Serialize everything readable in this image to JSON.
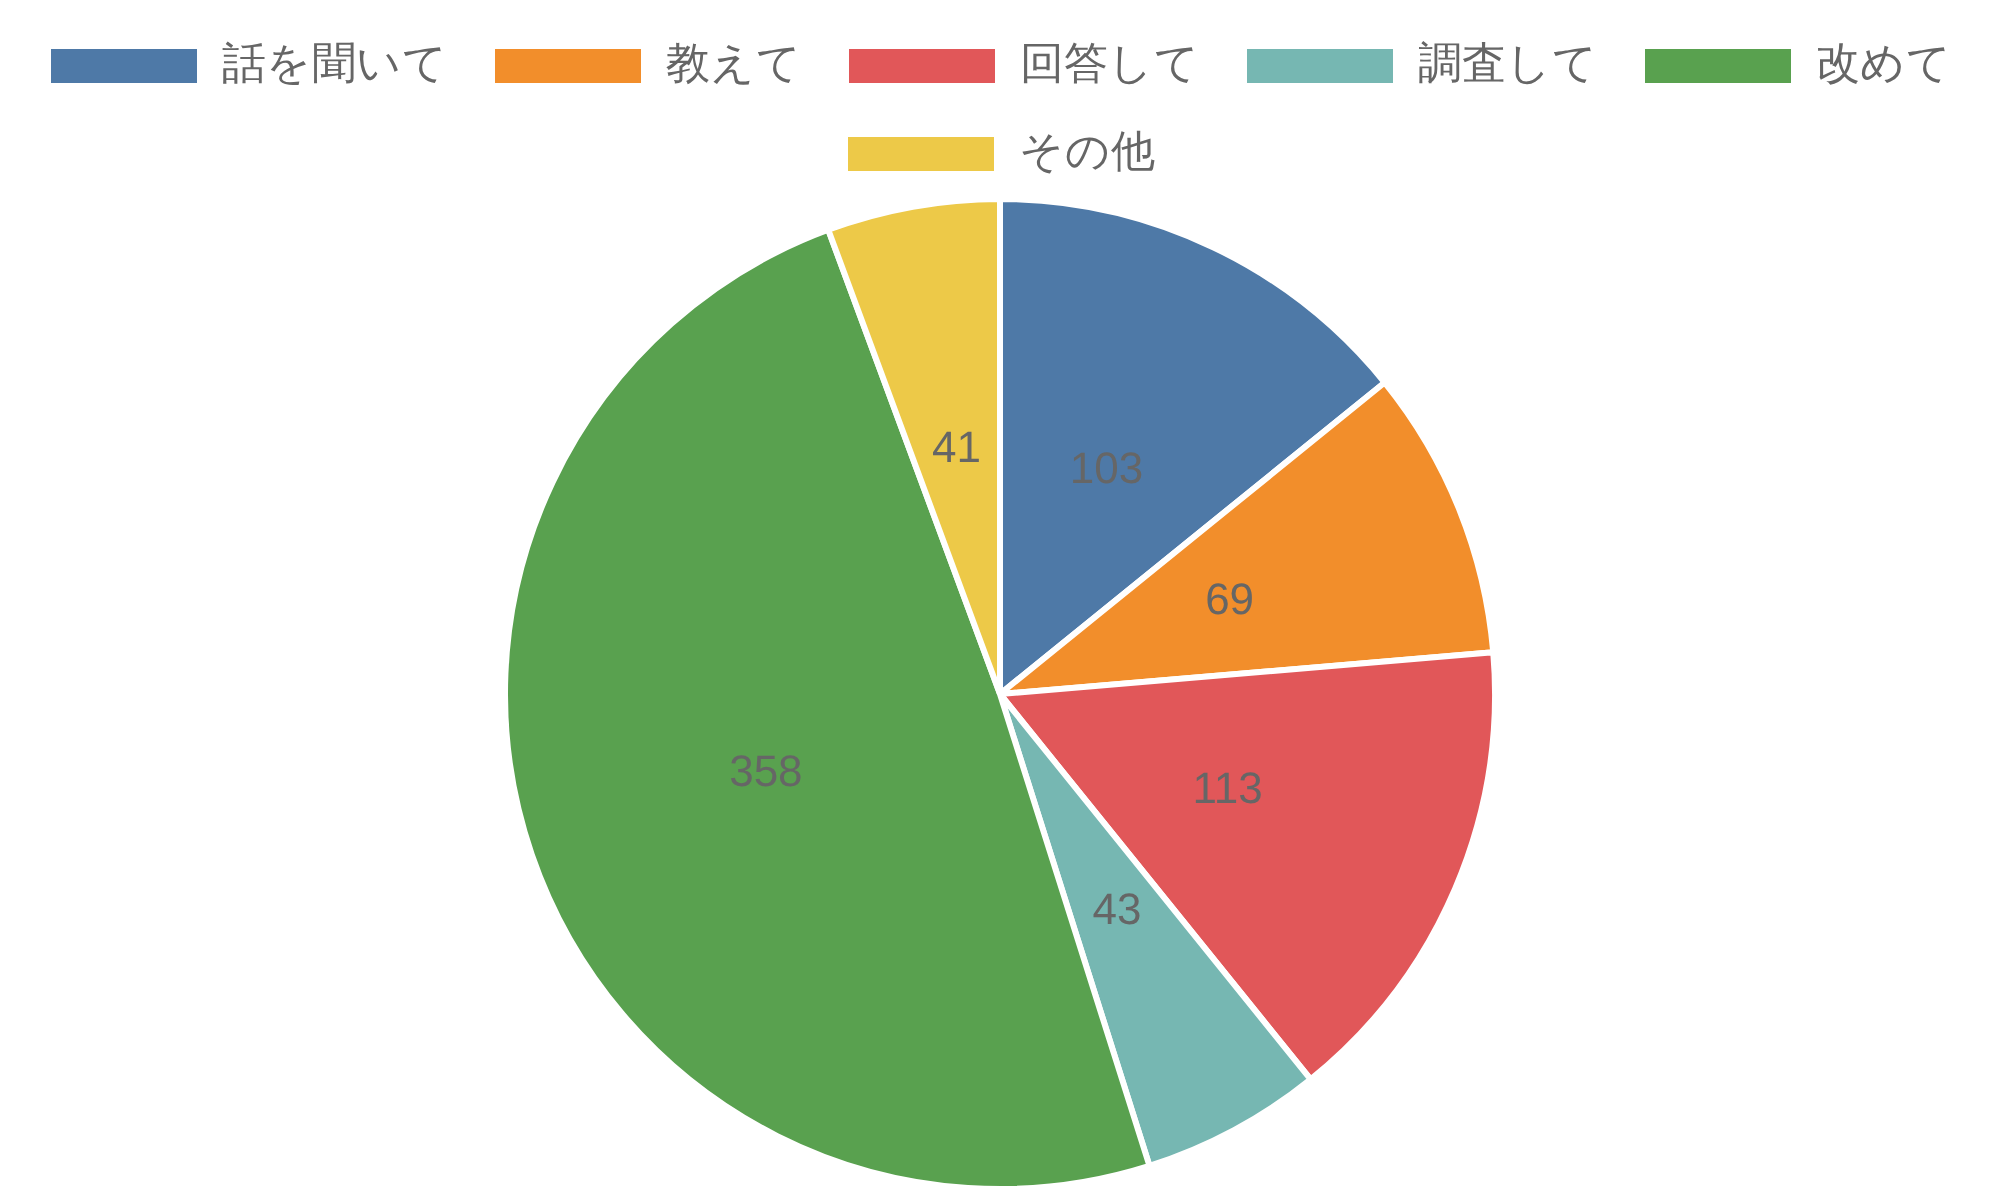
{
  "chart_data": {
    "type": "pie",
    "categories": [
      "話を聞いて",
      "教えて",
      "回答して",
      "調査して",
      "改めて",
      "その他"
    ],
    "values": [
      103,
      69,
      113,
      43,
      358,
      41
    ],
    "colors": [
      "#4e79a7",
      "#f28e2b",
      "#e15759",
      "#76b7b2",
      "#59a14f",
      "#edc948"
    ],
    "legend": "top",
    "data_labels": true
  }
}
